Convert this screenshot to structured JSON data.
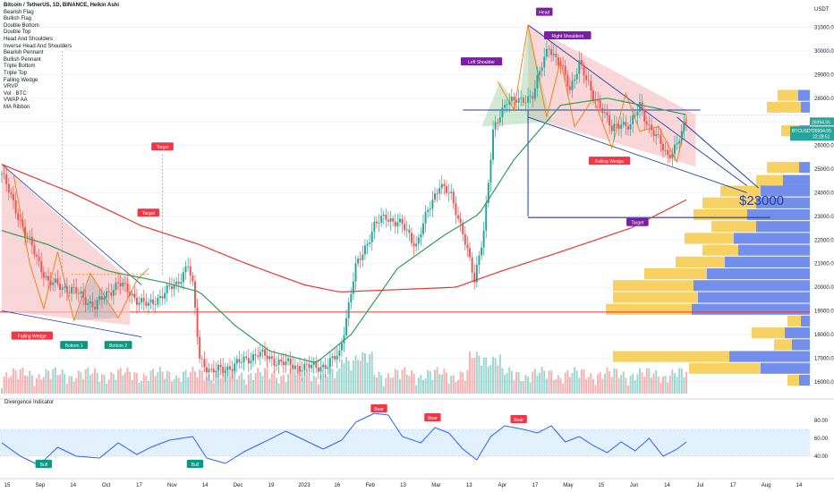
{
  "header": {
    "title": "Bitcoin / TetherUS, 1D, BINANCE, Heikin Ashi",
    "indicators": [
      "Bearish Flag",
      "Bullish Flag",
      "Double Bottom",
      "Double Top",
      "Head And Shoulders",
      "Inverse Head And Shoulders",
      "Bearish Pennant",
      "Bullish Pennant",
      "Triple Bottom",
      "Triple Top",
      "Falling Wedge",
      "VRVP",
      "Vol · BTC",
      "VWAP AA",
      "MA Ribbon"
    ],
    "currency": "USDT"
  },
  "colors": {
    "up": "#26a69a",
    "down": "#ef5350",
    "ma_red": "#e53935",
    "ma_green": "#2e9e5e",
    "wedge_fill": "#f7c6c9",
    "pattern_blue": "#1f3fa8",
    "vp_yellow": "#f7c948",
    "vp_blue": "#5b7be8",
    "rsi_line": "#2962ff",
    "rsi_band": "#e3f0fd",
    "label_green": "#089981",
    "label_red": "#f23645",
    "label_purple": "#7b1fa2"
  },
  "chart_data": {
    "type": "candlestick",
    "x_ticks": [
      "15",
      "Sep",
      "14",
      "Oct",
      "17",
      "Nov",
      "14",
      "Dec",
      "19",
      "2023",
      "16",
      "Feb",
      "13",
      "Mar",
      "13",
      "Apr",
      "17",
      "May",
      "15",
      "Jun",
      "14",
      "Jul",
      "17",
      "Aug",
      "14"
    ],
    "y_ticks": [
      31000,
      30000,
      29000,
      28000,
      27000,
      26000,
      25000,
      24000,
      23000,
      22000,
      21000,
      20000,
      19000,
      18000,
      17000,
      16000
    ],
    "ylim": [
      15500,
      31700
    ],
    "last_price": "26994.55",
    "symbol_tag": "BTCUSDT",
    "symbol_price": "26994.55",
    "countdown": "22:28:51",
    "horizontal_levels": [
      27300,
      18950
    ],
    "target_price_text": "$23000",
    "ohlc_anchors": [
      {
        "d": 0,
        "p": 24800
      },
      {
        "d": 10,
        "p": 22300
      },
      {
        "d": 20,
        "p": 20200
      },
      {
        "d": 30,
        "p": 19900
      },
      {
        "d": 40,
        "p": 19200
      },
      {
        "d": 50,
        "p": 20200
      },
      {
        "d": 58,
        "p": 19500
      },
      {
        "d": 63,
        "p": 19200
      },
      {
        "d": 70,
        "p": 19800
      },
      {
        "d": 75,
        "p": 20100
      },
      {
        "d": 80,
        "p": 21000
      },
      {
        "d": 82,
        "p": 20000
      },
      {
        "d": 85,
        "p": 17000
      },
      {
        "d": 90,
        "p": 16400
      },
      {
        "d": 100,
        "p": 16700
      },
      {
        "d": 110,
        "p": 17200
      },
      {
        "d": 120,
        "p": 16800
      },
      {
        "d": 130,
        "p": 16600
      },
      {
        "d": 140,
        "p": 16700
      },
      {
        "d": 145,
        "p": 17200
      },
      {
        "d": 152,
        "p": 20800
      },
      {
        "d": 160,
        "p": 22600
      },
      {
        "d": 165,
        "p": 23000
      },
      {
        "d": 172,
        "p": 22600
      },
      {
        "d": 178,
        "p": 21800
      },
      {
        "d": 183,
        "p": 23200
      },
      {
        "d": 188,
        "p": 24400
      },
      {
        "d": 193,
        "p": 23800
      },
      {
        "d": 198,
        "p": 22400
      },
      {
        "d": 203,
        "p": 20200
      },
      {
        "d": 207,
        "p": 22500
      },
      {
        "d": 211,
        "p": 26500
      },
      {
        "d": 217,
        "p": 28000
      },
      {
        "d": 223,
        "p": 27800
      },
      {
        "d": 228,
        "p": 28200
      },
      {
        "d": 235,
        "p": 30200
      },
      {
        "d": 240,
        "p": 29400
      },
      {
        "d": 244,
        "p": 28300
      },
      {
        "d": 248,
        "p": 29600
      },
      {
        "d": 253,
        "p": 28200
      },
      {
        "d": 258,
        "p": 27600
      },
      {
        "d": 262,
        "p": 26600
      },
      {
        "d": 266,
        "p": 27000
      },
      {
        "d": 270,
        "p": 26800
      },
      {
        "d": 274,
        "p": 27700
      },
      {
        "d": 278,
        "p": 26800
      },
      {
        "d": 282,
        "p": 26200
      },
      {
        "d": 286,
        "p": 25600
      },
      {
        "d": 290,
        "p": 26000
      },
      {
        "d": 294,
        "p": 26994.55
      }
    ],
    "ma_red": [
      {
        "d": 0,
        "p": 25200
      },
      {
        "d": 30,
        "p": 24000
      },
      {
        "d": 60,
        "p": 22600
      },
      {
        "d": 85,
        "p": 21800
      },
      {
        "d": 105,
        "p": 21000
      },
      {
        "d": 130,
        "p": 20100
      },
      {
        "d": 145,
        "p": 19800
      },
      {
        "d": 170,
        "p": 19900
      },
      {
        "d": 195,
        "p": 20000
      },
      {
        "d": 215,
        "p": 20700
      },
      {
        "d": 240,
        "p": 21500
      },
      {
        "d": 270,
        "p": 22500
      },
      {
        "d": 294,
        "p": 23700
      }
    ],
    "ma_green": [
      {
        "d": 0,
        "p": 22400
      },
      {
        "d": 20,
        "p": 21800
      },
      {
        "d": 45,
        "p": 20700
      },
      {
        "d": 70,
        "p": 20200
      },
      {
        "d": 85,
        "p": 19800
      },
      {
        "d": 100,
        "p": 18400
      },
      {
        "d": 115,
        "p": 17300
      },
      {
        "d": 135,
        "p": 16800
      },
      {
        "d": 150,
        "p": 18000
      },
      {
        "d": 170,
        "p": 20800
      },
      {
        "d": 190,
        "p": 22200
      },
      {
        "d": 205,
        "p": 23100
      },
      {
        "d": 220,
        "p": 25400
      },
      {
        "d": 240,
        "p": 27700
      },
      {
        "d": 260,
        "p": 28000
      },
      {
        "d": 280,
        "p": 27600
      },
      {
        "d": 294,
        "p": 27300
      }
    ],
    "volume_profile": [
      {
        "p": 28100,
        "total": 36,
        "buy": 13
      },
      {
        "p": 27600,
        "total": 48,
        "buy": 10
      },
      {
        "p": 26600,
        "total": 32,
        "buy": 12
      },
      {
        "p": 25050,
        "total": 48,
        "buy": 12
      },
      {
        "p": 24500,
        "total": 60,
        "buy": 30
      },
      {
        "p": 24050,
        "total": 100,
        "buy": 55
      },
      {
        "p": 23550,
        "total": 120,
        "buy": 60
      },
      {
        "p": 23050,
        "total": 130,
        "buy": 70
      },
      {
        "p": 22550,
        "total": 110,
        "buy": 60
      },
      {
        "p": 22050,
        "total": 140,
        "buy": 85
      },
      {
        "p": 21550,
        "total": 120,
        "buy": 80
      },
      {
        "p": 21050,
        "total": 150,
        "buy": 95
      },
      {
        "p": 20550,
        "total": 185,
        "buy": 115
      },
      {
        "p": 20050,
        "total": 220,
        "buy": 130
      },
      {
        "p": 19550,
        "total": 220,
        "buy": 125
      },
      {
        "p": 19050,
        "total": 228,
        "buy": 132
      },
      {
        "p": 18550,
        "total": 25,
        "buy": 10
      },
      {
        "p": 18050,
        "total": 65,
        "buy": 28
      },
      {
        "p": 17550,
        "total": 40,
        "buy": 20
      },
      {
        "p": 17050,
        "total": 220,
        "buy": 90
      },
      {
        "p": 16550,
        "total": 135,
        "buy": 55
      },
      {
        "p": 16050,
        "total": 25,
        "buy": 12
      }
    ],
    "rsi": {
      "y_ticks": [
        80,
        60,
        40
      ],
      "ylim": [
        20,
        95
      ],
      "band": [
        40,
        70
      ],
      "values": [
        {
          "d": 0,
          "v": 55
        },
        {
          "d": 8,
          "v": 40
        },
        {
          "d": 16,
          "v": 30
        },
        {
          "d": 24,
          "v": 50
        },
        {
          "d": 32,
          "v": 40
        },
        {
          "d": 42,
          "v": 38
        },
        {
          "d": 50,
          "v": 55
        },
        {
          "d": 58,
          "v": 42
        },
        {
          "d": 64,
          "v": 50
        },
        {
          "d": 72,
          "v": 58
        },
        {
          "d": 82,
          "v": 62
        },
        {
          "d": 88,
          "v": 38
        },
        {
          "d": 96,
          "v": 32
        },
        {
          "d": 104,
          "v": 45
        },
        {
          "d": 112,
          "v": 55
        },
        {
          "d": 122,
          "v": 68
        },
        {
          "d": 130,
          "v": 58
        },
        {
          "d": 138,
          "v": 48
        },
        {
          "d": 146,
          "v": 58
        },
        {
          "d": 152,
          "v": 78
        },
        {
          "d": 160,
          "v": 88
        },
        {
          "d": 166,
          "v": 86
        },
        {
          "d": 172,
          "v": 62
        },
        {
          "d": 180,
          "v": 55
        },
        {
          "d": 186,
          "v": 72
        },
        {
          "d": 192,
          "v": 66
        },
        {
          "d": 198,
          "v": 48
        },
        {
          "d": 204,
          "v": 36
        },
        {
          "d": 210,
          "v": 62
        },
        {
          "d": 216,
          "v": 74
        },
        {
          "d": 224,
          "v": 70
        },
        {
          "d": 230,
          "v": 66
        },
        {
          "d": 236,
          "v": 74
        },
        {
          "d": 242,
          "v": 56
        },
        {
          "d": 248,
          "v": 62
        },
        {
          "d": 254,
          "v": 52
        },
        {
          "d": 260,
          "v": 44
        },
        {
          "d": 266,
          "v": 56
        },
        {
          "d": 272,
          "v": 46
        },
        {
          "d": 278,
          "v": 60
        },
        {
          "d": 284,
          "v": 40
        },
        {
          "d": 290,
          "v": 48
        },
        {
          "d": 294,
          "v": 56
        }
      ]
    },
    "labels": [
      {
        "text": "Target",
        "d": 69,
        "p": 25900,
        "color": "red"
      },
      {
        "text": "Target",
        "d": 63,
        "p": 23100,
        "color": "red"
      },
      {
        "text": "Falling Wedge",
        "d": 13,
        "p": 17900,
        "color": "red"
      },
      {
        "text": "Bottom 1",
        "d": 31,
        "p": 17500,
        "color": "green"
      },
      {
        "text": "Bottom 2",
        "d": 50,
        "p": 17500,
        "color": "green"
      },
      {
        "text": "Head",
        "d": 233,
        "p": 31600,
        "color": "purple"
      },
      {
        "text": "Left Shoulder",
        "d": 206,
        "p": 29500,
        "color": "purple"
      },
      {
        "text": "Right Shoulders",
        "d": 243,
        "p": 30600,
        "color": "purple"
      },
      {
        "text": "Falling Wedge",
        "d": 261,
        "p": 25300,
        "color": "red"
      },
      {
        "text": "Target",
        "d": 273,
        "p": 22700,
        "color": "purple"
      }
    ],
    "rsi_labels": [
      {
        "text": "Bull",
        "d": 18,
        "v": 30,
        "color": "green"
      },
      {
        "text": "Bull",
        "d": 83,
        "v": 30,
        "color": "green"
      },
      {
        "text": "Bear",
        "d": 162,
        "v": 92,
        "color": "red"
      },
      {
        "text": "Bear",
        "d": 185,
        "v": 82,
        "color": "red"
      },
      {
        "text": "Bear",
        "d": 222,
        "v": 80,
        "color": "red"
      }
    ],
    "indicator_title": "Divergence Indicator"
  }
}
